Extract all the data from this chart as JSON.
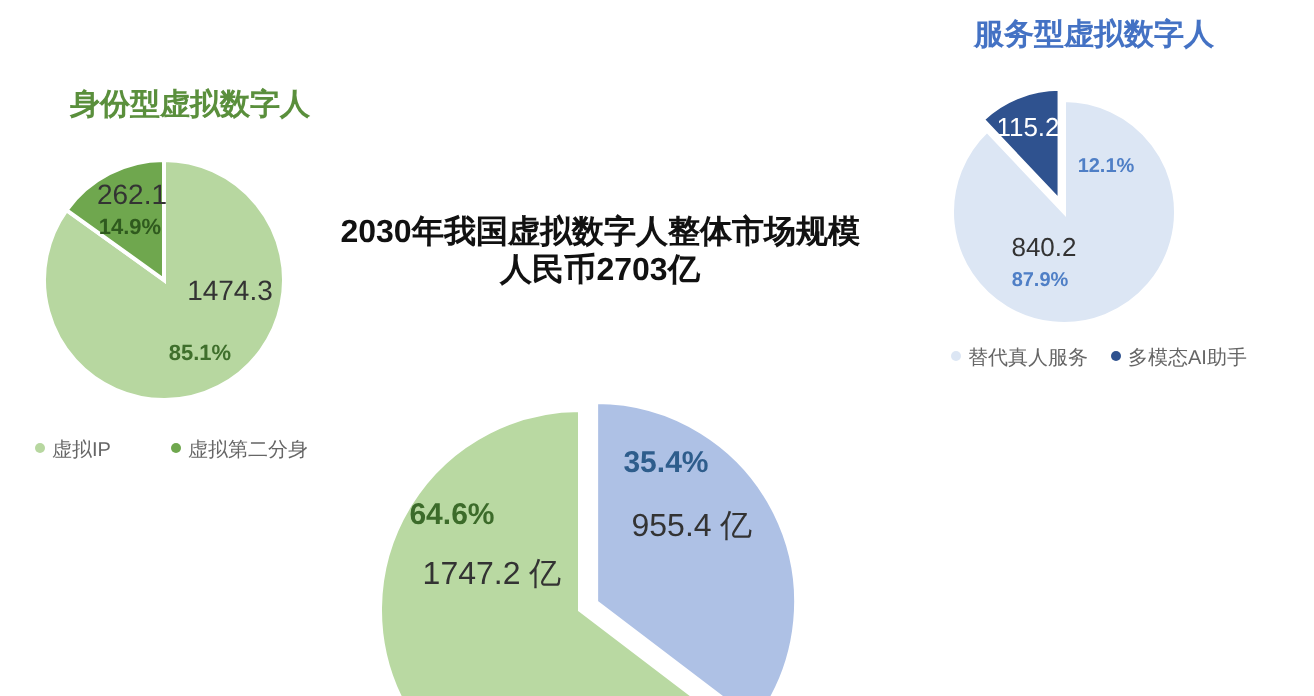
{
  "chart_data": [
    {
      "type": "pie",
      "title": "身份型虚拟数字人",
      "categories": [
        "虚拟IP",
        "虚拟第二分身"
      ],
      "values": [
        1474.3,
        262.1
      ],
      "colors": [
        "#b7d7a0",
        "#6fa74e"
      ],
      "data_labels": true,
      "annotations": [
        "85.1%",
        "14.9%"
      ],
      "legend": "bottom"
    },
    {
      "type": "pie",
      "title": "2030年我国虚拟数字人整体市场规模人民币2703亿",
      "categories": [
        null,
        null
      ],
      "values": [
        955.4,
        1747.2
      ],
      "colors": [
        "#aec1e5",
        "#b9d9a2"
      ],
      "value_labels": [
        "955.4 亿",
        "1747.2 亿"
      ],
      "annotations": [
        "35.4%",
        "64.6%"
      ]
    },
    {
      "type": "pie",
      "title": "服务型虚拟数字人",
      "categories": [
        "替代真人服务",
        "多模态AI助手"
      ],
      "values": [
        840.2,
        115.2
      ],
      "colors": [
        "#dce6f4",
        "#2f528f"
      ],
      "data_labels": true,
      "annotations": [
        "87.9%",
        "12.1%"
      ],
      "legend": "bottom"
    }
  ]
}
